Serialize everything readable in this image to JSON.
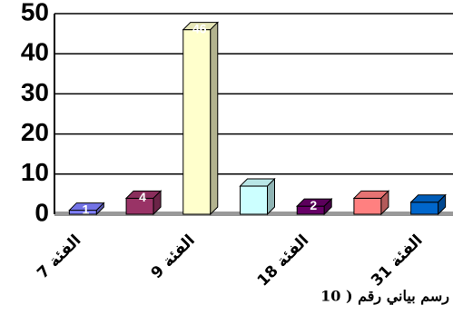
{
  "chart_data": {
    "type": "bar",
    "title": "رسم بياني رقم ( 10",
    "categories": [
      "الفئة 7",
      null,
      "الفئة 9",
      null,
      "الفئة 18",
      null,
      "الفئة 31"
    ],
    "values": [
      1,
      4,
      46,
      7,
      2,
      4,
      3
    ],
    "value_labels": [
      "1",
      "4",
      "46",
      null,
      "2",
      null,
      null
    ],
    "colors": [
      "#8080ff",
      "#993366",
      "#ffffcc",
      "#ccffff",
      "#660066",
      "#ff8080",
      "#0066cc"
    ],
    "ylim": [
      0,
      50
    ],
    "yticks": [
      0,
      10,
      20,
      30,
      40,
      50
    ],
    "grid": true
  }
}
